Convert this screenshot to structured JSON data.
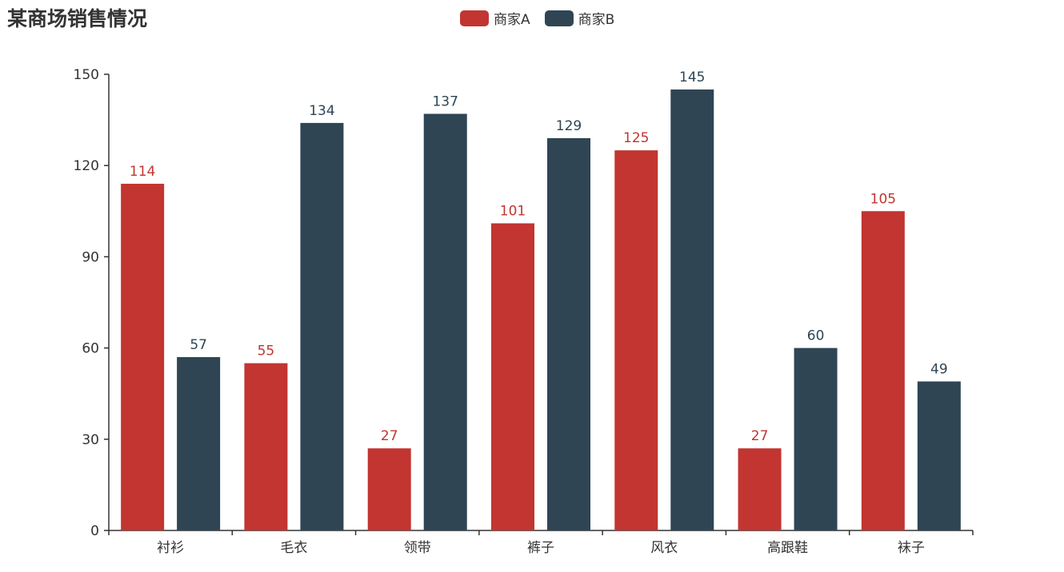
{
  "chart_data": {
    "type": "bar",
    "title": "某商场销售情况",
    "categories": [
      "衬衫",
      "毛衣",
      "领带",
      "裤子",
      "风衣",
      "高跟鞋",
      "袜子"
    ],
    "series": [
      {
        "name": "商家A",
        "color": "#c23531",
        "values": [
          114,
          55,
          27,
          101,
          125,
          27,
          105
        ]
      },
      {
        "name": "商家B",
        "color": "#2f4554",
        "values": [
          57,
          134,
          137,
          129,
          145,
          60,
          49
        ]
      }
    ],
    "yticks": [
      0,
      30,
      60,
      90,
      120,
      150
    ],
    "ylim": [
      0,
      150
    ],
    "grid": false,
    "legend_position": "top-center"
  }
}
